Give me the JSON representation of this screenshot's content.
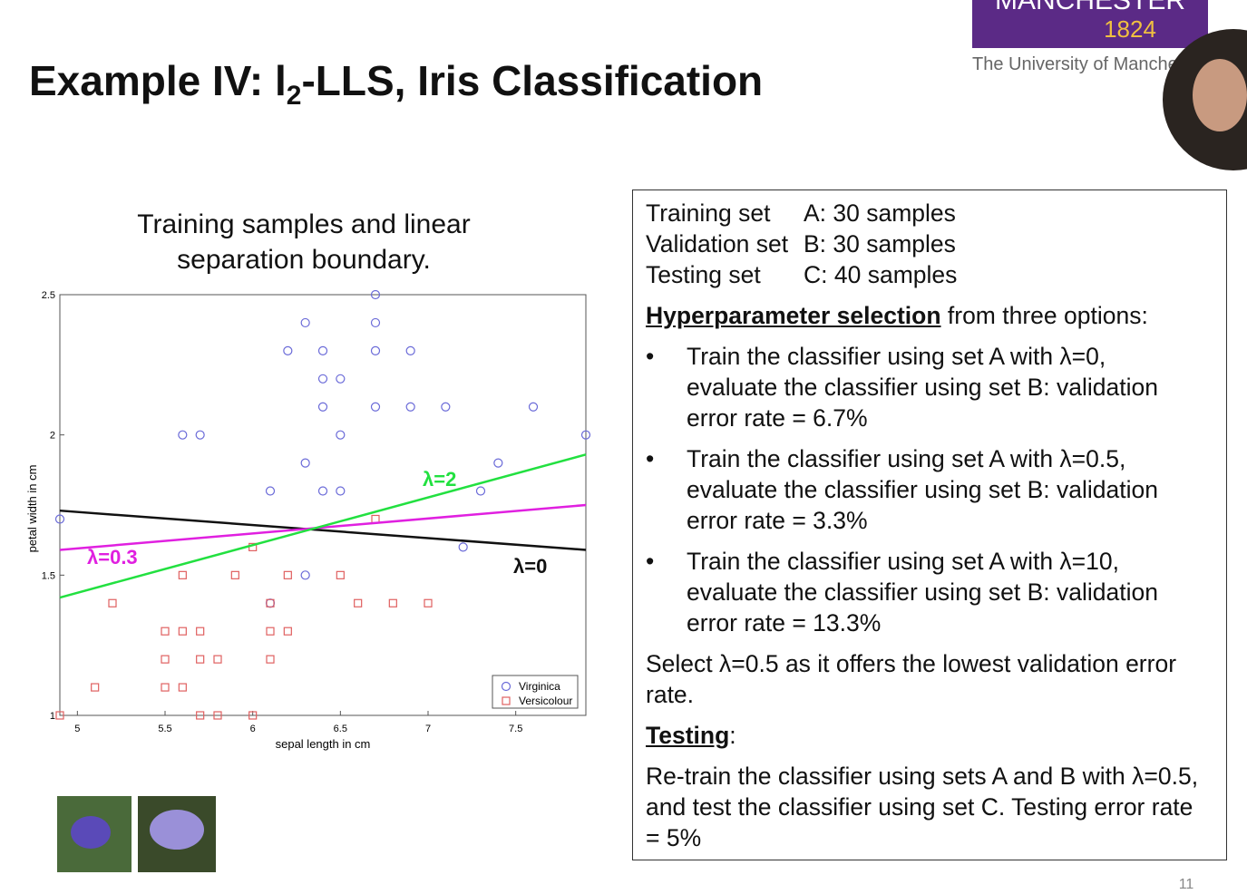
{
  "header": {
    "title_parts": [
      "Example IV: l",
      "2",
      "-LLS, Iris Classification"
    ],
    "logo": {
      "name": "MANCHESTER",
      "year": "1824",
      "subtitle": "The University of Manche"
    }
  },
  "chart_data": {
    "type": "scatter",
    "title": "Training samples and linear separation boundary.",
    "x_label": "sepal length in cm",
    "y_label": "petal width in cm",
    "xlim": [
      4.9,
      7.9
    ],
    "ylim": [
      1,
      2.5
    ],
    "xticks": [
      5,
      5.5,
      6,
      6.5,
      7,
      7.5
    ],
    "yticks": [
      1,
      1.5,
      2,
      2.5
    ],
    "legend": "lower right",
    "series": [
      {
        "name": "Virginica",
        "color": "#6a6ad8",
        "marker": "circle",
        "x": [
          4.9,
          5.6,
          5.7,
          6.1,
          6.1,
          6.2,
          6.3,
          6.3,
          6.3,
          6.4,
          6.4,
          6.4,
          6.4,
          6.5,
          6.5,
          6.5,
          6.7,
          6.7,
          6.7,
          6.7,
          6.9,
          6.9,
          7.1,
          7.2,
          7.3,
          7.4,
          7.6,
          7.9
        ],
        "values": [
          1.7,
          2.0,
          2.0,
          1.8,
          1.4,
          2.3,
          2.4,
          1.9,
          1.5,
          2.3,
          2.2,
          2.1,
          1.8,
          2.2,
          2.0,
          1.8,
          2.5,
          2.4,
          2.3,
          2.1,
          2.3,
          2.1,
          2.1,
          1.6,
          1.8,
          1.9,
          2.1,
          2.0
        ]
      },
      {
        "name": "Versicolour",
        "color": "#e06060",
        "marker": "square",
        "x": [
          4.9,
          5.1,
          5.2,
          5.5,
          5.5,
          5.5,
          5.6,
          5.6,
          5.6,
          5.7,
          5.7,
          5.7,
          5.8,
          5.8,
          5.9,
          6.0,
          6.0,
          6.1,
          6.1,
          6.1,
          6.2,
          6.2,
          6.5,
          6.6,
          6.7,
          6.8,
          7.0
        ],
        "values": [
          1.0,
          1.1,
          1.4,
          1.3,
          1.2,
          1.1,
          1.5,
          1.3,
          1.1,
          1.3,
          1.2,
          1.0,
          1.2,
          1.0,
          1.5,
          1.6,
          1.0,
          1.4,
          1.3,
          1.2,
          1.5,
          1.3,
          1.5,
          1.4,
          1.7,
          1.4,
          1.4
        ]
      }
    ],
    "lines": [
      {
        "label": "λ=0",
        "color": "#111111",
        "x": [
          4.9,
          7.9
        ],
        "values": [
          1.73,
          1.59
        ]
      },
      {
        "label": "λ=0.3",
        "color": "#e020e0",
        "x": [
          4.9,
          7.9
        ],
        "values": [
          1.59,
          1.75
        ]
      },
      {
        "label": "λ=2",
        "color": "#22e040",
        "x": [
          4.9,
          7.9
        ],
        "values": [
          1.42,
          1.93
        ]
      }
    ]
  },
  "box": {
    "sets": [
      [
        "Training set",
        "A: 30 samples"
      ],
      [
        "Validation set",
        "B: 30 samples"
      ],
      [
        "Testing set",
        "C: 40 samples"
      ]
    ],
    "hyper_heading": "Hyperparameter selection",
    "hyper_rest": " from three options:",
    "bullets": [
      "Train the classifier using set A with λ=0, evaluate the classifier using set B: validation error rate = 6.7%",
      "Train the classifier using set A with λ=0.5, evaluate the classifier using set B: validation error rate = 3.3%",
      "Train the classifier using set A with λ=10, evaluate the classifier using set B: validation error rate = 13.3%"
    ],
    "select": "Select λ=0.5 as it offers the lowest validation error rate.",
    "testing_heading": "Testing",
    "testing_colon": ":",
    "testing_text": "Re-train the classifier using sets A and B with λ=0.5, and test the classifier using set C. Testing error rate = 5%"
  },
  "page_number": "11"
}
